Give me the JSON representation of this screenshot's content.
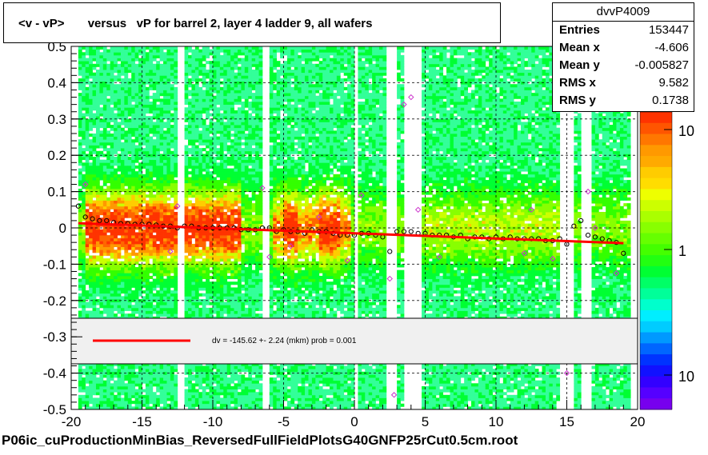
{
  "chart_data": {
    "type": "heatmap",
    "title": "<v - vP>       versus   vP for barrel 2, layer 4 ladder 9, all wafers",
    "xlabel": "",
    "ylabel": "",
    "xlim": [
      -20,
      20
    ],
    "ylim": [
      -0.5,
      0.5
    ],
    "x_ticks": [
      "-20",
      "-15",
      "-10",
      "-5",
      "0",
      "5",
      "10",
      "15",
      "20"
    ],
    "y_ticks": [
      "-0.5",
      "-0.4",
      "-0.3",
      "-0.2",
      "-0.1",
      "0",
      "0.1",
      "0.2",
      "0.3",
      "0.4",
      "0.5"
    ],
    "grid": true,
    "colorbar": {
      "scale": "log",
      "labels": [
        "10",
        "1",
        "10"
      ]
    },
    "fit": {
      "line": {
        "x": [
          -19.5,
          19
        ],
        "y": [
          0.013,
          -0.042
        ],
        "color": "#ff0000"
      },
      "legend_text": "dv = -145.62 +-  2.24 (mkm) prob = 0.001"
    },
    "profile_points": {
      "x": [
        -19.5,
        -19,
        -18.5,
        -18,
        -17.5,
        -17,
        -16.5,
        -16,
        -15.5,
        -15,
        -14.5,
        -14,
        -13.5,
        -13,
        -12.5,
        -12,
        -11.5,
        -11,
        -10.5,
        -10,
        -9.5,
        -9,
        -8.5,
        -8,
        -7.5,
        -7,
        -6.5,
        -6,
        -5.5,
        -5,
        -4.5,
        -4,
        -3.5,
        -3,
        -2.5,
        -2,
        -1.5,
        -1,
        -0.5,
        0,
        0.5,
        1,
        1.5,
        2,
        2.5,
        3,
        3.5,
        4,
        4.5,
        5,
        5.5,
        6,
        6.5,
        7,
        7.5,
        8,
        8.5,
        9,
        9.5,
        10,
        10.5,
        11,
        11.5,
        12,
        12.5,
        13,
        13.5,
        14,
        14.5,
        15,
        15.5,
        16,
        16.5,
        17,
        17.5,
        18,
        18.5,
        19
      ],
      "y": [
        0.06,
        0.03,
        0.025,
        0.02,
        0.02,
        0.015,
        0.012,
        0.012,
        0.01,
        0.01,
        0.01,
        0.008,
        0.005,
        0.005,
        0.0,
        0.005,
        0.005,
        0.0,
        0.0,
        0.0,
        0.0,
        0.0,
        0.0,
        -0.005,
        -0.005,
        -0.005,
        0.0,
        0.0,
        -0.01,
        -0.005,
        -0.01,
        -0.01,
        -0.015,
        -0.005,
        -0.01,
        -0.01,
        -0.015,
        -0.02,
        -0.02,
        -0.02,
        -0.015,
        -0.015,
        -0.02,
        -0.025,
        -0.065,
        -0.01,
        -0.01,
        -0.01,
        -0.015,
        -0.015,
        -0.02,
        -0.02,
        -0.02,
        -0.025,
        -0.02,
        -0.03,
        -0.025,
        -0.025,
        -0.03,
        -0.025,
        -0.03,
        -0.025,
        -0.03,
        -0.03,
        -0.03,
        -0.03,
        -0.035,
        -0.035,
        -0.03,
        -0.045,
        0.005,
        0.02,
        -0.02,
        -0.025,
        -0.03,
        -0.035,
        -0.04,
        -0.07
      ]
    },
    "outlier_points": {
      "x": [
        -19,
        -12.5,
        -13,
        -6,
        -6.5,
        -4.5,
        -2.5,
        -0.5,
        0.5,
        2.5,
        3.5,
        4,
        4.5,
        6,
        12,
        12.5,
        14,
        15,
        16.5,
        17,
        18.5,
        2.8
      ],
      "y": [
        0.12,
        0.06,
        -0.065,
        -0.08,
        0.11,
        -0.05,
        0.03,
        -0.09,
        0.09,
        -0.14,
        0.34,
        0.36,
        0.05,
        -0.08,
        -0.07,
        0.05,
        -0.085,
        -0.4,
        0.1,
        0.0,
        -0.125,
        -0.46
      ]
    }
  },
  "stats": {
    "title": "dvvP4009",
    "rows": [
      {
        "key": "Entries",
        "value": "153447"
      },
      {
        "key": "Mean x",
        "value": "-4.606"
      },
      {
        "key": "Mean y",
        "value": "-0.005827"
      },
      {
        "key": "RMS x",
        "value": "9.582"
      },
      {
        "key": "RMS y",
        "value": "0.1738"
      }
    ]
  },
  "footer": "P06ic_cuProductionMinBias_ReversedFullFieldPlotsG40GNFP25rCut0.5cm.root"
}
